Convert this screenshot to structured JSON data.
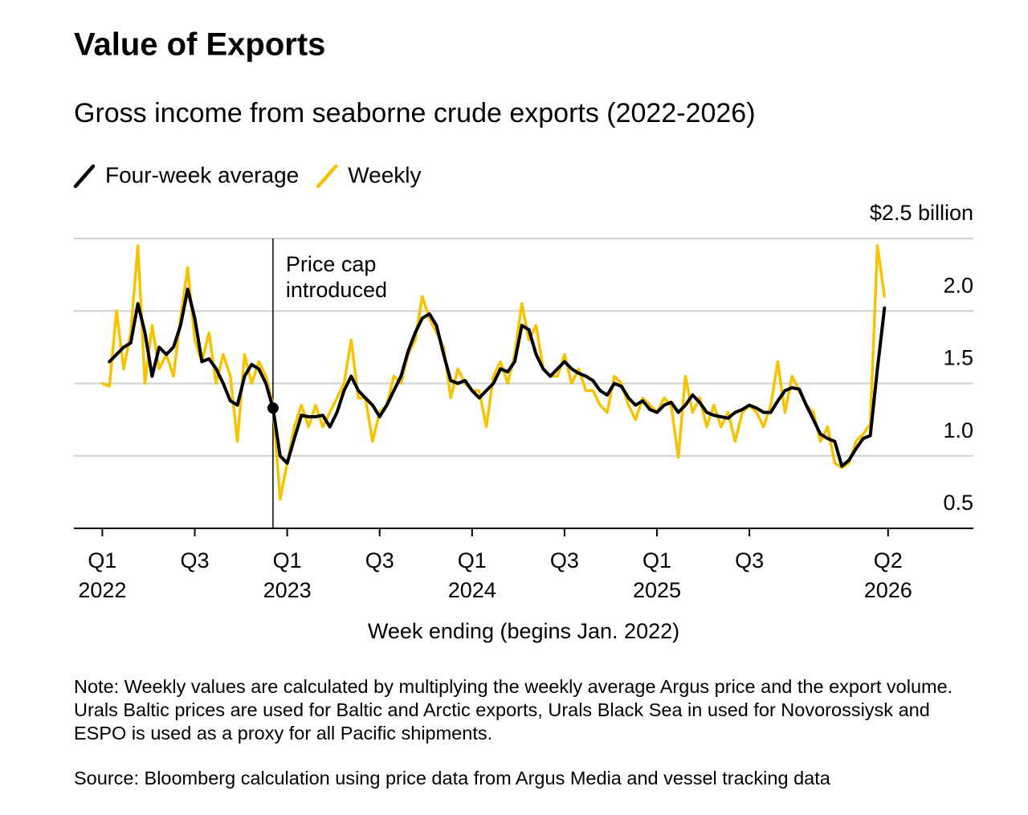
{
  "chart_data": {
    "type": "line",
    "title": "Value of Exports",
    "subtitle": "Gross income from seaborne crude exports (2022-2026)",
    "xlabel": "Week ending (begins Jan. 2022)",
    "note": "Note: Weekly values are calculated by multiplying the weekly average Argus price and the export volume. Urals Baltic prices are used for Baltic and Arctic exports, Urals Black Sea in used for Novorossiysk and ESPO is used as a proxy for all Pacific shipments.",
    "source": "Source: Bloomberg calculation using price data from Argus Media and vessel tracking data",
    "x": [
      0,
      2,
      4,
      6,
      8,
      10,
      12,
      14,
      16,
      18,
      20,
      22,
      24,
      26,
      28,
      30,
      32,
      34,
      36,
      38,
      40,
      42,
      44,
      46,
      48,
      50,
      52,
      54,
      56,
      58,
      60,
      62,
      64,
      66,
      68,
      70,
      72,
      74,
      76,
      78,
      80,
      82,
      84,
      86,
      88,
      90,
      92,
      94,
      96,
      98,
      100,
      102,
      104,
      106,
      108,
      110,
      112,
      114,
      116,
      118,
      120,
      122,
      124,
      126,
      128,
      130,
      132,
      134,
      136,
      138,
      140,
      142,
      144,
      146,
      148,
      150,
      152,
      154,
      156,
      158,
      160,
      162,
      164,
      166,
      168,
      170,
      172,
      174,
      176,
      178,
      180,
      182,
      184,
      186,
      188,
      190,
      192,
      194,
      196,
      198,
      200,
      202,
      204,
      206,
      208,
      210,
      212,
      214,
      216,
      218,
      220
    ],
    "xlim": [
      -8,
      245
    ],
    "xticks": [
      {
        "value": 0,
        "label": "Q1",
        "year": "2022"
      },
      {
        "value": 26,
        "label": "Q3"
      },
      {
        "value": 52,
        "label": "Q1",
        "year": "2023"
      },
      {
        "value": 78,
        "label": "Q3"
      },
      {
        "value": 104,
        "label": "Q1",
        "year": "2024"
      },
      {
        "value": 130,
        "label": "Q3"
      },
      {
        "value": 156,
        "label": "Q1",
        "year": "2025"
      },
      {
        "value": 182,
        "label": "Q3"
      },
      {
        "value": 221,
        "label": "Q2",
        "year": "2026"
      }
    ],
    "ylim": [
      0.5,
      2.5
    ],
    "yticks": [
      {
        "value": 0.5,
        "label": "0.5"
      },
      {
        "value": 1,
        "label": "1.0"
      },
      {
        "value": 1.5,
        "label": "1.5"
      },
      {
        "value": 2,
        "label": "2.0"
      },
      {
        "value": 2.5,
        "label": "$2.5 billion"
      }
    ],
    "grid": true,
    "annotation": {
      "x": 48,
      "lines": [
        "Price cap",
        "introduced"
      ],
      "series": 0,
      "index": 24
    },
    "series": [
      {
        "name": "Four-week average",
        "color": "#000000",
        "width": 4,
        "values": [
          null,
          1.65,
          1.7,
          1.75,
          1.78,
          2.05,
          1.85,
          1.55,
          1.75,
          1.7,
          1.75,
          1.9,
          2.15,
          1.95,
          1.65,
          1.67,
          1.6,
          1.5,
          1.38,
          1.35,
          1.55,
          1.63,
          1.6,
          1.5,
          1.33,
          1.0,
          0.95,
          1.12,
          1.28,
          1.27,
          1.27,
          1.28,
          1.2,
          1.3,
          1.45,
          1.55,
          1.45,
          1.4,
          1.35,
          1.27,
          1.35,
          1.45,
          1.55,
          1.72,
          1.85,
          1.95,
          1.98,
          1.9,
          1.7,
          1.52,
          1.5,
          1.52,
          1.45,
          1.4,
          1.45,
          1.5,
          1.6,
          1.58,
          1.65,
          1.9,
          1.87,
          1.7,
          1.6,
          1.55,
          1.6,
          1.65,
          1.6,
          1.57,
          1.55,
          1.52,
          1.45,
          1.42,
          1.5,
          1.48,
          1.4,
          1.35,
          1.38,
          1.32,
          1.3,
          1.35,
          1.37,
          1.3,
          1.35,
          1.42,
          1.37,
          1.3,
          1.28,
          1.27,
          1.26,
          1.3,
          1.32,
          1.35,
          1.33,
          1.3,
          1.3,
          1.38,
          1.45,
          1.47,
          1.46,
          1.35,
          1.25,
          1.15,
          1.12,
          1.1,
          0.93,
          0.97,
          1.05,
          1.12,
          1.14,
          1.6,
          2.02
        ]
      },
      {
        "name": "Weekly",
        "color": "#f7c200",
        "width": 3.5,
        "values": [
          1.5,
          1.48,
          2.0,
          1.6,
          1.85,
          2.45,
          1.5,
          1.9,
          1.6,
          1.7,
          1.55,
          1.95,
          2.3,
          1.8,
          1.65,
          1.85,
          1.5,
          1.7,
          1.55,
          1.1,
          1.7,
          1.5,
          1.65,
          1.55,
          1.35,
          0.7,
          0.95,
          1.2,
          1.35,
          1.2,
          1.35,
          1.2,
          1.3,
          1.4,
          1.5,
          1.8,
          1.4,
          1.4,
          1.1,
          1.3,
          1.35,
          1.55,
          1.5,
          1.7,
          1.8,
          2.1,
          1.95,
          1.85,
          1.75,
          1.4,
          1.6,
          1.5,
          1.45,
          1.45,
          1.2,
          1.55,
          1.65,
          1.5,
          1.7,
          2.05,
          1.8,
          1.9,
          1.6,
          1.55,
          1.55,
          1.7,
          1.5,
          1.6,
          1.45,
          1.45,
          1.35,
          1.3,
          1.55,
          1.5,
          1.35,
          1.25,
          1.4,
          1.35,
          1.3,
          1.4,
          1.35,
          0.99,
          1.55,
          1.3,
          1.4,
          1.2,
          1.35,
          1.2,
          1.3,
          1.1,
          1.3,
          1.35,
          1.3,
          1.2,
          1.35,
          1.65,
          1.3,
          1.55,
          1.45,
          1.35,
          1.3,
          1.1,
          1.2,
          0.95,
          0.92,
          0.95,
          1.1,
          1.15,
          1.22,
          2.45,
          2.1
        ]
      }
    ]
  }
}
